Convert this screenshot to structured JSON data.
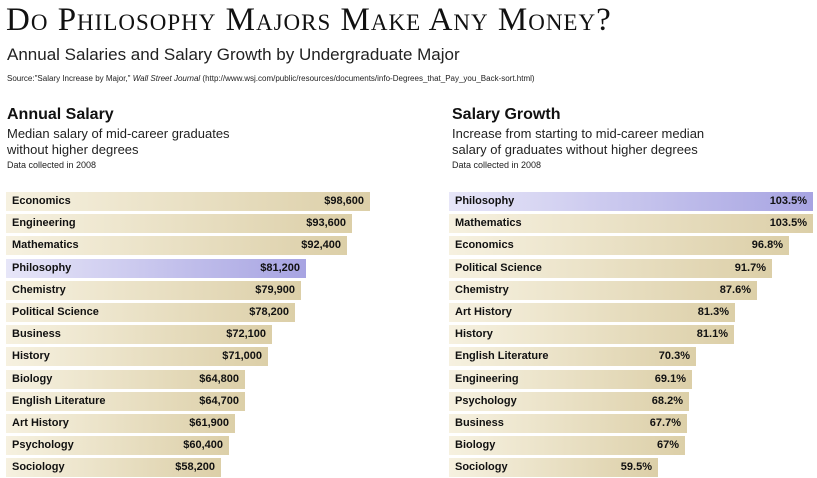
{
  "header": {
    "title": "Do Philosophy Majors Make Any Money?",
    "subtitle": "Annual Salaries and Salary Growth by Undergraduate Major",
    "source_prefix": "Source:\"Salary Increase by Major,\"",
    "source_pub": "Wall Street Journal",
    "source_url": "(http://www.wsj.com/public/resources/documents/info-Degrees_that_Pay_you_Back-sort.html)"
  },
  "chart_data": [
    {
      "type": "bar",
      "orientation": "horizontal",
      "title": "Annual Salary",
      "subtitle_lines": [
        "Median salary of mid-career graduates",
        "without higher degrees"
      ],
      "note": "Data collected in 2008",
      "highlight": "Philosophy",
      "highlight_color": "#a7a4e2",
      "bar_color": "#dccfa8",
      "categories": [
        "Economics",
        "Engineering",
        "Mathematics",
        "Philosophy",
        "Chemistry",
        "Political Science",
        "Business",
        "History",
        "Biology",
        "English Literature",
        "Art History",
        "Psychology",
        "Sociology"
      ],
      "values": [
        98600,
        93600,
        92400,
        81200,
        79900,
        78200,
        72100,
        71000,
        64800,
        64700,
        61900,
        60400,
        58200
      ],
      "labels": [
        "$98,600",
        "$93,600",
        "$92,400",
        "$81,200",
        "$79,900",
        "$78,200",
        "$72,100",
        "$71,000",
        "$64,800",
        "$64,700",
        "$61,900",
        "$60,400",
        "$58,200"
      ]
    },
    {
      "type": "bar",
      "orientation": "horizontal",
      "title": "Salary Growth",
      "subtitle_lines": [
        "Increase from starting to mid-career median",
        "salary of graduates without higher degrees"
      ],
      "note": "Data collected in 2008",
      "highlight": "Philosophy",
      "highlight_color": "#a7a4e2",
      "bar_color": "#dccfa8",
      "categories": [
        "Philosophy",
        "Mathematics",
        "Economics",
        "Political Science",
        "Chemistry",
        "Art History",
        "History",
        "English Literature",
        "Engineering",
        "Psychology",
        "Business",
        "Biology",
        "Sociology"
      ],
      "values": [
        103.5,
        103.5,
        96.8,
        91.7,
        87.6,
        81.3,
        81.1,
        70.3,
        69.1,
        68.2,
        67.7,
        67,
        59.5
      ],
      "labels": [
        "103.5%",
        "103.5%",
        "96.8%",
        "91.7%",
        "87.6%",
        "81.3%",
        "81.1%",
        "70.3%",
        "69.1%",
        "68.2%",
        "67.7%",
        "67%",
        "59.5%"
      ]
    }
  ]
}
